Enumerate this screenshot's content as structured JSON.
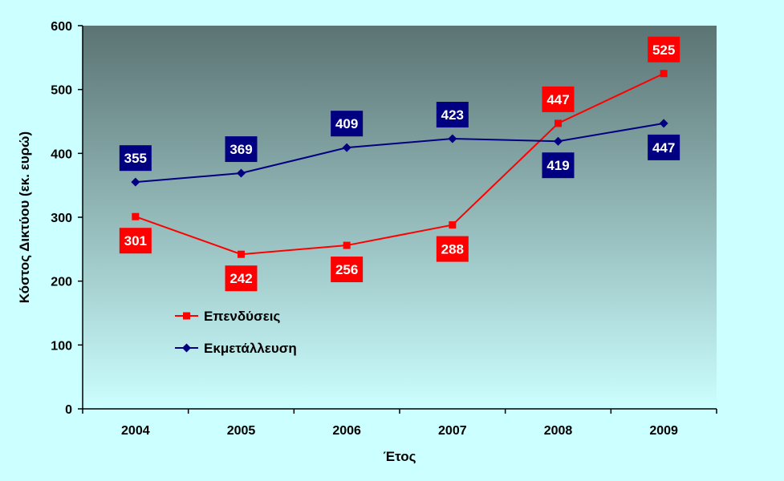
{
  "chart_data": {
    "type": "line",
    "title": "",
    "xlabel": "Έτος",
    "ylabel": "Κόστος Δικτύου (εκ. ευρώ)",
    "categories": [
      "2004",
      "2005",
      "2006",
      "2007",
      "2008",
      "2009"
    ],
    "ylim": [
      0,
      600
    ],
    "yticks": [
      "0",
      "100",
      "200",
      "300",
      "400",
      "500",
      "600"
    ],
    "grid": false,
    "legend_position": "lower-left",
    "series": [
      {
        "name": "Επενδύσεις",
        "values": [
          301,
          242,
          256,
          288,
          447,
          525
        ],
        "color": "#ff0000",
        "marker": "square",
        "label_background": "#ff0000"
      },
      {
        "name": "Εκμετάλλευση",
        "values": [
          355,
          369,
          409,
          423,
          419,
          447
        ],
        "color": "#000080",
        "marker": "diamond",
        "label_background": "#000080"
      }
    ],
    "plot_background": {
      "top": "#5b7373",
      "bottom": "#ccffff"
    },
    "page_background": "#ccffff"
  }
}
